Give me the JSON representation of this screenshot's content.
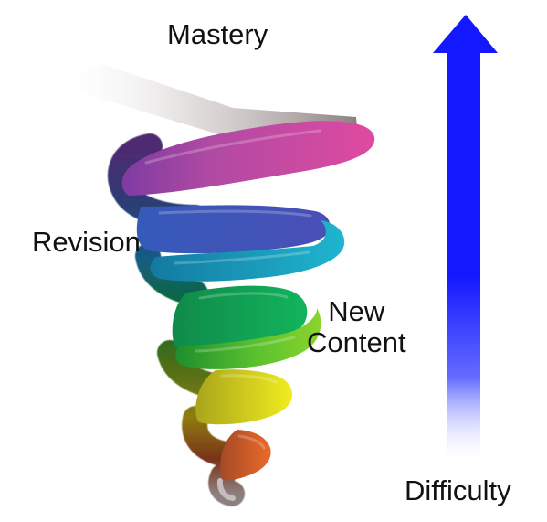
{
  "labels": {
    "mastery": "Mastery",
    "revision": "Revision",
    "new_content_line1": "New",
    "new_content_line2": "Content",
    "difficulty": "Difficulty"
  },
  "colors": {
    "arrow": "#1418ff",
    "tail": "#8c7f7f",
    "coils": [
      "#df4aa0",
      "#4a4fb8",
      "#1fb6cf",
      "#0fa060",
      "#2eb53a",
      "#e8e81f",
      "#ec6a2a"
    ],
    "inner_shadow": [
      "#4f2a73",
      "#2e3b73",
      "#145b84",
      "#0f6b2d",
      "#4d6e16",
      "#8e7d0f",
      "#79321a"
    ]
  },
  "icons": {
    "spiral": "helix-spiral-icon",
    "difficulty_arrow": "upward-arrow-icon"
  }
}
